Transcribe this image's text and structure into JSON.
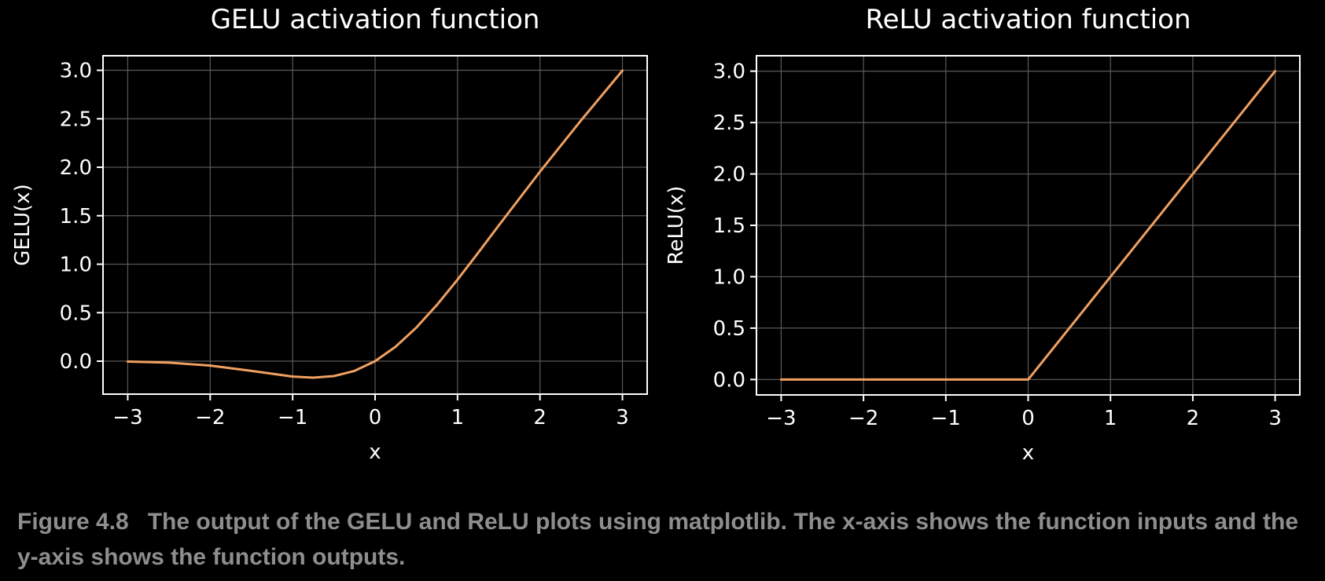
{
  "chart_data": [
    {
      "type": "line",
      "title": "GELU activation function",
      "xlabel": "x",
      "ylabel": "GELU(x)",
      "xlim": [
        -3.3,
        3.3
      ],
      "ylim": [
        -0.34,
        3.15
      ],
      "xticks": [
        -3,
        -2,
        -1,
        0,
        1,
        2,
        3
      ],
      "xtick_labels": [
        "−3",
        "−2",
        "−1",
        "0",
        "1",
        "2",
        "3"
      ],
      "yticks": [
        0.0,
        0.5,
        1.0,
        1.5,
        2.0,
        2.5,
        3.0
      ],
      "ytick_labels": [
        "0.0",
        "0.5",
        "1.0",
        "1.5",
        "2.0",
        "2.5",
        "3.0"
      ],
      "grid": true,
      "series": [
        {
          "color": "#f0a060",
          "x": [
            -3.0,
            -2.5,
            -2.0,
            -1.5,
            -1.0,
            -0.75,
            -0.5,
            -0.25,
            0.0,
            0.25,
            0.5,
            0.75,
            1.0,
            1.25,
            1.5,
            2.0,
            2.5,
            3.0
          ],
          "y": [
            -0.004,
            -0.015,
            -0.045,
            -0.1,
            -0.159,
            -0.17,
            -0.154,
            -0.1,
            0.0,
            0.15,
            0.346,
            0.58,
            0.841,
            1.118,
            1.4,
            1.955,
            2.485,
            2.996
          ]
        }
      ]
    },
    {
      "type": "line",
      "title": "ReLU activation function",
      "xlabel": "x",
      "ylabel": "ReLU(x)",
      "xlim": [
        -3.3,
        3.3
      ],
      "ylim": [
        -0.15,
        3.15
      ],
      "xticks": [
        -3,
        -2,
        -1,
        0,
        1,
        2,
        3
      ],
      "xtick_labels": [
        "−3",
        "−2",
        "−1",
        "0",
        "1",
        "2",
        "3"
      ],
      "yticks": [
        0.0,
        0.5,
        1.0,
        1.5,
        2.0,
        2.5,
        3.0
      ],
      "ytick_labels": [
        "0.0",
        "0.5",
        "1.0",
        "1.5",
        "2.0",
        "2.5",
        "3.0"
      ],
      "grid": true,
      "series": [
        {
          "color": "#f0a060",
          "x": [
            -3.0,
            0.0,
            3.0
          ],
          "y": [
            0.0,
            0.0,
            3.0
          ]
        }
      ]
    }
  ],
  "caption": {
    "label": "Figure 4.8",
    "text": "The output of the GELU and ReLU plots using matplotlib. The x-axis shows the function inputs and the y-axis shows the function outputs."
  }
}
